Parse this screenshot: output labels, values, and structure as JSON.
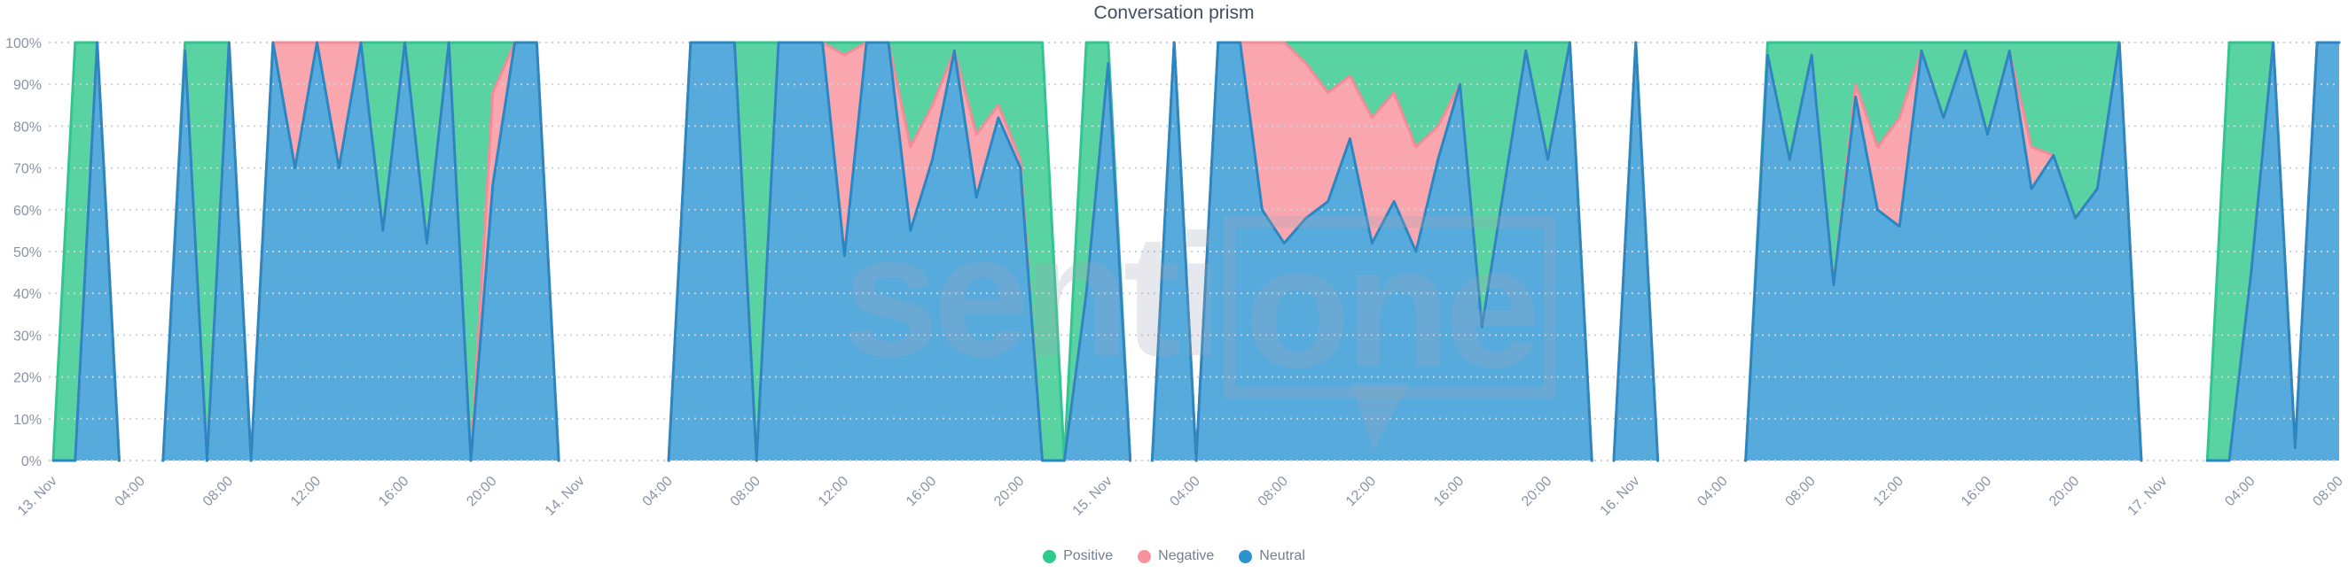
{
  "header": {
    "title": "Conversation prism"
  },
  "watermark": {
    "left": "senti",
    "boxed": "one"
  },
  "legend": {
    "items": [
      {
        "label": "Positive",
        "color": "#2ecb8f"
      },
      {
        "label": "Negative",
        "color": "#f9919b"
      },
      {
        "label": "Neutral",
        "color": "#2d93cf"
      }
    ]
  },
  "axes": {
    "y_tick_labels": [
      "0%",
      "10%",
      "20%",
      "30%",
      "40%",
      "50%",
      "60%",
      "70%",
      "80%",
      "90%",
      "100%"
    ],
    "x_tick_labels": [
      "13. Nov",
      "04:00",
      "08:00",
      "12:00",
      "16:00",
      "20:00",
      "14. Nov",
      "04:00",
      "08:00",
      "12:00",
      "16:00",
      "20:00",
      "15. Nov",
      "04:00",
      "08:00",
      "12:00",
      "16:00",
      "20:00",
      "16. Nov",
      "04:00",
      "08:00",
      "12:00",
      "16:00",
      "20:00",
      "17. Nov",
      "04:00",
      "08:00"
    ]
  },
  "chart_data": {
    "type": "area",
    "stacking": "percent",
    "title": "Conversation prism",
    "ylabel": "",
    "xlabel": "",
    "ylim": [
      0,
      100
    ],
    "grid": "dotted horizontal gridlines every 10%",
    "legend_position": "bottom-center",
    "point_count": 105,
    "point_interval": "1 hour",
    "x_tick_every_points": 4,
    "x_tick_labels": [
      "13. Nov",
      "04:00",
      "08:00",
      "12:00",
      "16:00",
      "20:00",
      "14. Nov",
      "04:00",
      "08:00",
      "12:00",
      "16:00",
      "20:00",
      "15. Nov",
      "04:00",
      "08:00",
      "12:00",
      "16:00",
      "20:00",
      "16. Nov",
      "04:00",
      "08:00",
      "12:00",
      "16:00",
      "20:00",
      "17. Nov",
      "04:00",
      "08:00"
    ],
    "y_tick_labels": [
      "0%",
      "10%",
      "20%",
      "30%",
      "40%",
      "50%",
      "60%",
      "70%",
      "80%",
      "90%",
      "100%"
    ],
    "stack_order_bottom_to_top": [
      "Neutral",
      "Negative",
      "Positive"
    ],
    "zeros_mean_gap": true,
    "series": [
      {
        "name": "Positive",
        "fill": "#59d3a2",
        "line": "#34c492",
        "values": [
          0,
          100,
          0,
          0,
          0,
          0,
          2,
          100,
          0,
          0,
          0,
          0,
          0,
          0,
          0,
          45,
          0,
          48,
          0,
          100,
          12,
          0,
          0,
          0,
          0,
          0,
          0,
          0,
          0,
          0,
          0,
          0,
          100,
          0,
          0,
          0,
          3,
          0,
          0,
          25,
          15,
          2,
          22,
          15,
          28,
          100,
          0,
          60,
          5,
          0,
          0,
          0,
          0,
          0,
          0,
          0,
          0,
          5,
          12,
          8,
          18,
          12,
          25,
          20,
          10,
          68,
          35,
          2,
          28,
          0,
          0,
          0,
          0,
          0,
          0,
          0,
          0,
          0,
          3,
          28,
          3,
          58,
          10,
          25,
          18,
          2,
          18,
          2,
          22,
          2,
          25,
          27,
          42,
          35,
          0,
          0,
          0,
          0,
          0,
          100,
          55,
          0,
          0,
          0,
          0
        ]
      },
      {
        "name": "Negative",
        "fill": "#f9a6af",
        "line": "#f48b98",
        "values": [
          0,
          0,
          0,
          0,
          0,
          0,
          0,
          0,
          0,
          0,
          0,
          30,
          0,
          30,
          0,
          0,
          0,
          0,
          0,
          0,
          22,
          0,
          0,
          0,
          0,
          0,
          0,
          0,
          0,
          0,
          0,
          0,
          0,
          0,
          0,
          0,
          48,
          0,
          0,
          20,
          13,
          0,
          15,
          3,
          2,
          0,
          0,
          0,
          0,
          0,
          0,
          0,
          0,
          0,
          0,
          40,
          48,
          37,
          26,
          15,
          30,
          26,
          25,
          8,
          0,
          0,
          0,
          0,
          0,
          0,
          0,
          0,
          0,
          0,
          0,
          0,
          0,
          0,
          0,
          0,
          0,
          0,
          3,
          15,
          26,
          0,
          0,
          0,
          0,
          0,
          10,
          0,
          0,
          0,
          0,
          0,
          0,
          0,
          0,
          0,
          0,
          0,
          0,
          0,
          0
        ]
      },
      {
        "name": "Neutral",
        "fill": "#57abdc",
        "line": "#2b87c3",
        "values": [
          0,
          0,
          100,
          0,
          0,
          0,
          98,
          0,
          100,
          0,
          100,
          70,
          100,
          70,
          100,
          55,
          100,
          52,
          100,
          0,
          66,
          100,
          100,
          0,
          0,
          0,
          0,
          0,
          0,
          100,
          100,
          100,
          0,
          100,
          100,
          100,
          49,
          100,
          100,
          55,
          72,
          98,
          63,
          82,
          70,
          0,
          0,
          40,
          95,
          0,
          0,
          100,
          0,
          100,
          100,
          60,
          52,
          58,
          62,
          77,
          52,
          62,
          50,
          72,
          90,
          32,
          65,
          98,
          72,
          100,
          0,
          0,
          100,
          0,
          0,
          0,
          0,
          0,
          97,
          72,
          97,
          42,
          87,
          60,
          56,
          98,
          82,
          98,
          78,
          98,
          65,
          73,
          58,
          65,
          100,
          0,
          0,
          0,
          0,
          0,
          45,
          100,
          3,
          100,
          100
        ]
      }
    ]
  }
}
